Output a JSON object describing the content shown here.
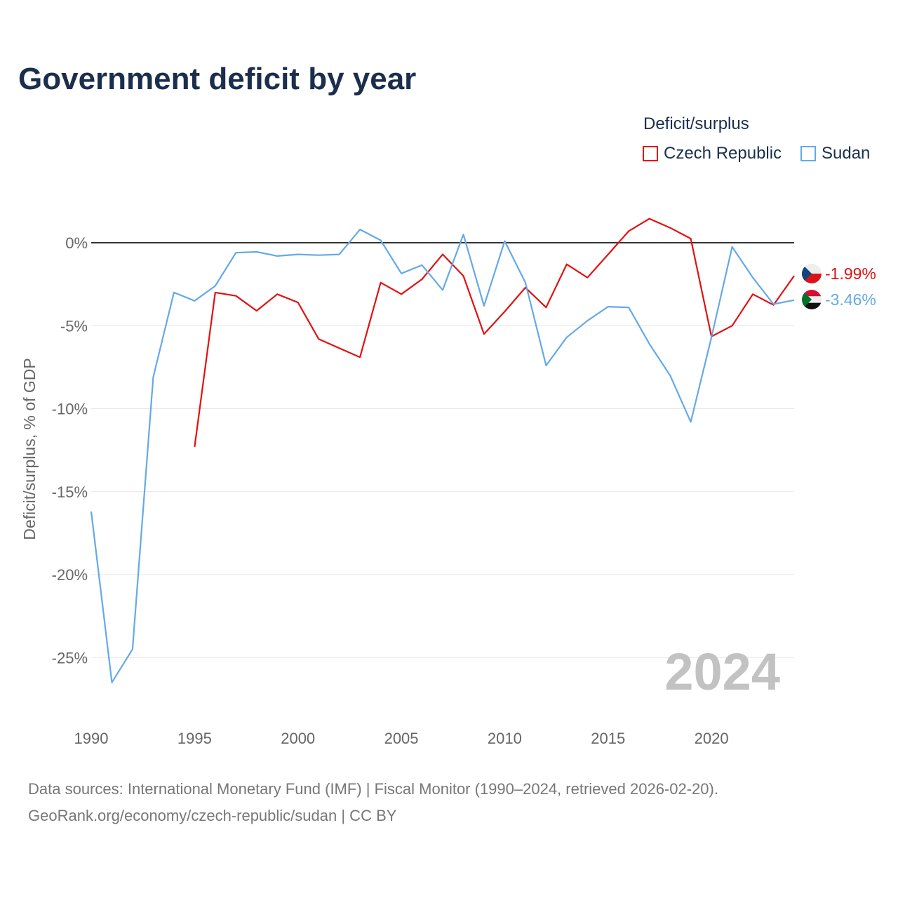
{
  "title": "Government deficit by year",
  "legend": {
    "title": "Deficit/surplus",
    "items": [
      {
        "name": "Czech Republic",
        "color": "#e31010"
      },
      {
        "name": "Sudan",
        "color": "#64a9e8"
      }
    ]
  },
  "footer": {
    "sources": "Data sources: International Monetary Fund (IMF) | Fiscal Monitor (1990–2024, retrieved 2026-02-20).",
    "link": "GeoRank.org/economy/czech-republic/sudan | CC BY"
  },
  "chart_data": {
    "type": "line",
    "title": "Government deficit by year",
    "xlabel": "",
    "ylabel": "Deficit/surplus, % of GDP",
    "xlim": [
      1990,
      2024
    ],
    "ylim": [
      -27,
      2
    ],
    "x_ticks": [
      1990,
      1995,
      2000,
      2005,
      2010,
      2015,
      2020
    ],
    "y_ticks": [
      0,
      -5,
      -10,
      -15,
      -20,
      -25
    ],
    "y_tick_labels": [
      "0%",
      "-5%",
      "-10%",
      "-15%",
      "-20%",
      "-25%"
    ],
    "year_watermark": "2024",
    "series": [
      {
        "name": "Czech Republic",
        "color": "#e31010",
        "end_label": "-1.99%",
        "x": [
          1995,
          1996,
          1997,
          1998,
          1999,
          2000,
          2001,
          2002,
          2003,
          2004,
          2005,
          2006,
          2007,
          2008,
          2009,
          2010,
          2011,
          2012,
          2013,
          2014,
          2015,
          2016,
          2017,
          2018,
          2019,
          2020,
          2021,
          2022,
          2023,
          2024
        ],
        "values": [
          -12.3,
          -3.0,
          -3.2,
          -4.1,
          -3.1,
          -3.6,
          -5.8,
          -6.35,
          -6.9,
          -2.4,
          -3.1,
          -2.2,
          -0.7,
          -2.0,
          -5.5,
          -4.15,
          -2.7,
          -3.9,
          -1.3,
          -2.1,
          -0.7,
          0.7,
          1.45,
          0.9,
          0.25,
          -5.65,
          -5.0,
          -3.1,
          -3.75,
          -1.99
        ]
      },
      {
        "name": "Sudan",
        "color": "#64a9e8",
        "end_label": "-3.46%",
        "x": [
          1990,
          1991,
          1992,
          1993,
          1994,
          1995,
          1996,
          1997,
          1998,
          1999,
          2000,
          2001,
          2002,
          2003,
          2004,
          2005,
          2006,
          2007,
          2008,
          2009,
          2010,
          2011,
          2012,
          2013,
          2014,
          2015,
          2016,
          2017,
          2018,
          2019,
          2020,
          2021,
          2022,
          2023,
          2024
        ],
        "values": [
          -16.2,
          -26.5,
          -24.5,
          -8.1,
          -3.0,
          -3.5,
          -2.6,
          -0.6,
          -0.55,
          -0.8,
          -0.7,
          -0.75,
          -0.7,
          0.8,
          0.15,
          -1.85,
          -1.35,
          -2.85,
          0.5,
          -3.8,
          0.1,
          -2.4,
          -7.4,
          -5.7,
          -4.7,
          -3.85,
          -3.9,
          -6.1,
          -8.0,
          -10.8,
          -5.7,
          -0.25,
          -2.1,
          -3.7,
          -3.46
        ]
      }
    ]
  }
}
